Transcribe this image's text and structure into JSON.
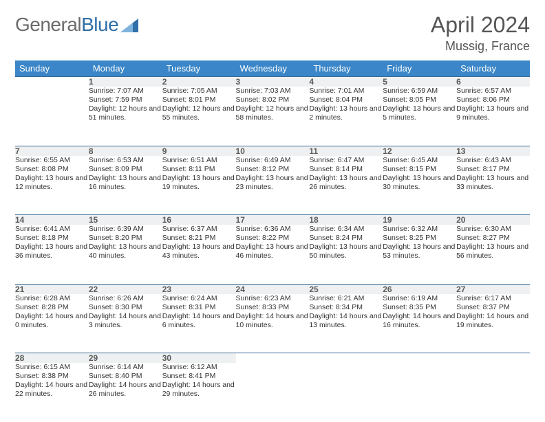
{
  "brand": {
    "part1": "General",
    "part2": "Blue"
  },
  "title": "April 2024",
  "location": "Mussig, France",
  "colors": {
    "header_bg": "#3a86c8",
    "header_text": "#ffffff",
    "daynum_bg": "#eef0f1",
    "rule": "#3a6a94",
    "logo_gray": "#6b6b6b",
    "logo_blue": "#2f6fa8",
    "text": "#333333",
    "title_gray": "#555555"
  },
  "weekdays": [
    "Sunday",
    "Monday",
    "Tuesday",
    "Wednesday",
    "Thursday",
    "Friday",
    "Saturday"
  ],
  "weeks": [
    [
      null,
      {
        "n": "1",
        "sr": "7:07 AM",
        "ss": "7:59 PM",
        "dl": "12 hours and 51 minutes."
      },
      {
        "n": "2",
        "sr": "7:05 AM",
        "ss": "8:01 PM",
        "dl": "12 hours and 55 minutes."
      },
      {
        "n": "3",
        "sr": "7:03 AM",
        "ss": "8:02 PM",
        "dl": "12 hours and 58 minutes."
      },
      {
        "n": "4",
        "sr": "7:01 AM",
        "ss": "8:04 PM",
        "dl": "13 hours and 2 minutes."
      },
      {
        "n": "5",
        "sr": "6:59 AM",
        "ss": "8:05 PM",
        "dl": "13 hours and 5 minutes."
      },
      {
        "n": "6",
        "sr": "6:57 AM",
        "ss": "8:06 PM",
        "dl": "13 hours and 9 minutes."
      }
    ],
    [
      {
        "n": "7",
        "sr": "6:55 AM",
        "ss": "8:08 PM",
        "dl": "13 hours and 12 minutes."
      },
      {
        "n": "8",
        "sr": "6:53 AM",
        "ss": "8:09 PM",
        "dl": "13 hours and 16 minutes."
      },
      {
        "n": "9",
        "sr": "6:51 AM",
        "ss": "8:11 PM",
        "dl": "13 hours and 19 minutes."
      },
      {
        "n": "10",
        "sr": "6:49 AM",
        "ss": "8:12 PM",
        "dl": "13 hours and 23 minutes."
      },
      {
        "n": "11",
        "sr": "6:47 AM",
        "ss": "8:14 PM",
        "dl": "13 hours and 26 minutes."
      },
      {
        "n": "12",
        "sr": "6:45 AM",
        "ss": "8:15 PM",
        "dl": "13 hours and 30 minutes."
      },
      {
        "n": "13",
        "sr": "6:43 AM",
        "ss": "8:17 PM",
        "dl": "13 hours and 33 minutes."
      }
    ],
    [
      {
        "n": "14",
        "sr": "6:41 AM",
        "ss": "8:18 PM",
        "dl": "13 hours and 36 minutes."
      },
      {
        "n": "15",
        "sr": "6:39 AM",
        "ss": "8:20 PM",
        "dl": "13 hours and 40 minutes."
      },
      {
        "n": "16",
        "sr": "6:37 AM",
        "ss": "8:21 PM",
        "dl": "13 hours and 43 minutes."
      },
      {
        "n": "17",
        "sr": "6:36 AM",
        "ss": "8:22 PM",
        "dl": "13 hours and 46 minutes."
      },
      {
        "n": "18",
        "sr": "6:34 AM",
        "ss": "8:24 PM",
        "dl": "13 hours and 50 minutes."
      },
      {
        "n": "19",
        "sr": "6:32 AM",
        "ss": "8:25 PM",
        "dl": "13 hours and 53 minutes."
      },
      {
        "n": "20",
        "sr": "6:30 AM",
        "ss": "8:27 PM",
        "dl": "13 hours and 56 minutes."
      }
    ],
    [
      {
        "n": "21",
        "sr": "6:28 AM",
        "ss": "8:28 PM",
        "dl": "14 hours and 0 minutes."
      },
      {
        "n": "22",
        "sr": "6:26 AM",
        "ss": "8:30 PM",
        "dl": "14 hours and 3 minutes."
      },
      {
        "n": "23",
        "sr": "6:24 AM",
        "ss": "8:31 PM",
        "dl": "14 hours and 6 minutes."
      },
      {
        "n": "24",
        "sr": "6:23 AM",
        "ss": "8:33 PM",
        "dl": "14 hours and 10 minutes."
      },
      {
        "n": "25",
        "sr": "6:21 AM",
        "ss": "8:34 PM",
        "dl": "14 hours and 13 minutes."
      },
      {
        "n": "26",
        "sr": "6:19 AM",
        "ss": "8:35 PM",
        "dl": "14 hours and 16 minutes."
      },
      {
        "n": "27",
        "sr": "6:17 AM",
        "ss": "8:37 PM",
        "dl": "14 hours and 19 minutes."
      }
    ],
    [
      {
        "n": "28",
        "sr": "6:15 AM",
        "ss": "8:38 PM",
        "dl": "14 hours and 22 minutes."
      },
      {
        "n": "29",
        "sr": "6:14 AM",
        "ss": "8:40 PM",
        "dl": "14 hours and 26 minutes."
      },
      {
        "n": "30",
        "sr": "6:12 AM",
        "ss": "8:41 PM",
        "dl": "14 hours and 29 minutes."
      },
      null,
      null,
      null,
      null
    ]
  ],
  "labels": {
    "sunrise": "Sunrise:",
    "sunset": "Sunset:",
    "daylight": "Daylight:"
  }
}
